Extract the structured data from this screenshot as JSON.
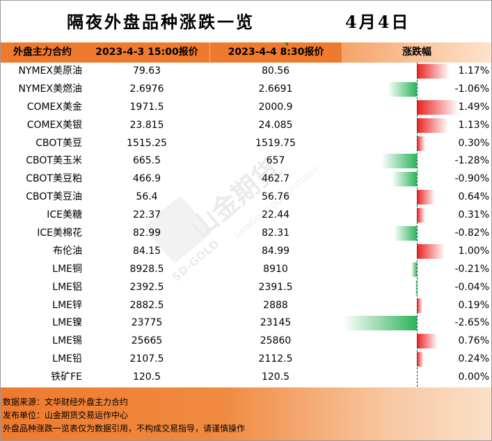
{
  "title": {
    "main": "隔夜外盘品种涨跌一览",
    "date": "4月4日"
  },
  "header": {
    "col0": "外盘主力合约",
    "col1": "2023-4-3 15:00报价",
    "col2": "2023-4-4 8:30报价",
    "col3": "涨跌幅"
  },
  "rows": [
    {
      "name": "NYMEX美原油",
      "prev": "79.63",
      "curr": "80.56",
      "change": "1.17%",
      "pct": 1.17
    },
    {
      "name": "NYMEX美燃油",
      "prev": "2.6976",
      "curr": "2.6691",
      "change": "-1.06%",
      "pct": -1.06
    },
    {
      "name": "COMEX美金",
      "prev": "1971.5",
      "curr": "2000.9",
      "change": "1.49%",
      "pct": 1.49
    },
    {
      "name": "COMEX美银",
      "prev": "23.815",
      "curr": "24.085",
      "change": "1.13%",
      "pct": 1.13
    },
    {
      "name": "CBOT美豆",
      "prev": "1515.25",
      "curr": "1519.75",
      "change": "0.30%",
      "pct": 0.3
    },
    {
      "name": "CBOT美玉米",
      "prev": "665.5",
      "curr": "657",
      "change": "-1.28%",
      "pct": -1.28
    },
    {
      "name": "CBOT美豆粕",
      "prev": "466.9",
      "curr": "462.7",
      "change": "-0.90%",
      "pct": -0.9
    },
    {
      "name": "CBOT美豆油",
      "prev": "56.4",
      "curr": "56.76",
      "change": "0.64%",
      "pct": 0.64
    },
    {
      "name": "ICE美糖",
      "prev": "22.37",
      "curr": "22.44",
      "change": "0.31%",
      "pct": 0.31
    },
    {
      "name": "ICE美棉花",
      "prev": "82.99",
      "curr": "82.31",
      "change": "-0.82%",
      "pct": -0.82
    },
    {
      "name": "布伦油",
      "prev": "84.15",
      "curr": "84.99",
      "change": "1.00%",
      "pct": 1.0
    },
    {
      "name": "LME铜",
      "prev": "8928.5",
      "curr": "8910",
      "change": "-0.21%",
      "pct": -0.21
    },
    {
      "name": "LME铝",
      "prev": "2392.5",
      "curr": "2391.5",
      "change": "-0.04%",
      "pct": -0.04
    },
    {
      "name": "LME锌",
      "prev": "2882.5",
      "curr": "2888",
      "change": "0.19%",
      "pct": 0.19
    },
    {
      "name": "LME镍",
      "prev": "23775",
      "curr": "23145",
      "change": "-2.65%",
      "pct": -2.65
    },
    {
      "name": "LME锡",
      "prev": "25665",
      "curr": "25860",
      "change": "0.76%",
      "pct": 0.76
    },
    {
      "name": "LME铅",
      "prev": "2107.5",
      "curr": "2112.5",
      "change": "0.24%",
      "pct": 0.24
    },
    {
      "name": "铁矿FE",
      "prev": "120.5",
      "curr": "120.5",
      "change": "0.00%",
      "pct": 0.0
    }
  ],
  "footer": {
    "source": "数据来源：文华财经外盘主力合约",
    "publisher": "发布单位：山金期货交易运作中心",
    "disclaimer": "外盘品种涨跌一览表仅为数据引用，不构成交易指导，请谨慎操作"
  },
  "watermark": {
    "brand": "山金期货",
    "sub": "SHANDONG GOLD FUTURES",
    "sd": "SD-GOLD"
  },
  "colors": {
    "header": "#ef7a2e",
    "up": "#ea2020",
    "down": "#2db35a"
  }
}
